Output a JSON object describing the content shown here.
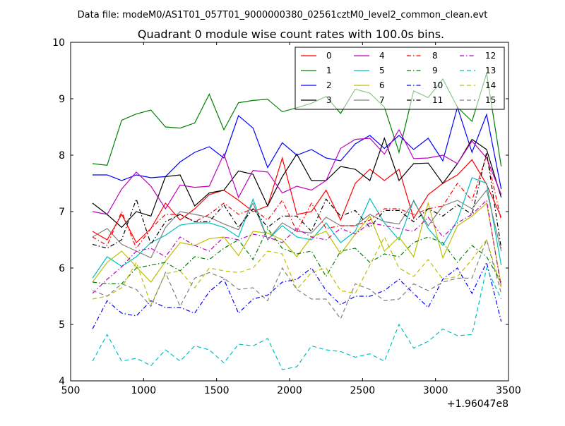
{
  "file_label": "Data file: modeM0/AS1T01_057T01_9000000380_02561cztM0_level2_common_clean.evt",
  "chart_data": {
    "type": "line",
    "title": "Quadrant 0 module wise count rates with 100.0s bins.",
    "xlabel": "",
    "ylabel": "",
    "x_offset_label": "+1.96047e8",
    "xlim": [
      500,
      3500
    ],
    "ylim": [
      4,
      10
    ],
    "xticks": [
      500,
      1000,
      1500,
      2000,
      2500,
      3000,
      3500
    ],
    "yticks": [
      4,
      5,
      6,
      7,
      8,
      9,
      10
    ],
    "grid": false,
    "legend_position": "top-right",
    "legend_columns": 4,
    "x": [
      650,
      750,
      850,
      950,
      1050,
      1150,
      1250,
      1350,
      1450,
      1550,
      1650,
      1750,
      1850,
      1950,
      2050,
      2150,
      2250,
      2350,
      2450,
      2550,
      2650,
      2750,
      2850,
      2950,
      3050,
      3150,
      3250,
      3350,
      3450
    ],
    "series": [
      {
        "name": "0",
        "color": "#ff0000",
        "dash": "solid",
        "values": [
          6.65,
          6.5,
          6.95,
          6.45,
          6.7,
          7.15,
          6.85,
          7.05,
          7.3,
          7.38,
          7.2,
          7.0,
          7.1,
          7.95,
          6.95,
          7.0,
          7.38,
          6.85,
          7.5,
          7.75,
          7.55,
          7.75,
          6.88,
          7.3,
          7.5,
          7.65,
          7.92,
          7.48,
          6.9
        ]
      },
      {
        "name": "1",
        "color": "#008000",
        "dash": "solid",
        "values": [
          7.85,
          7.82,
          8.62,
          8.73,
          8.8,
          8.5,
          8.48,
          8.57,
          9.08,
          8.45,
          8.93,
          8.97,
          8.99,
          8.77,
          8.84,
          8.92,
          9.04,
          8.74,
          9.17,
          9.1,
          8.85,
          8.05,
          9.14,
          9.02,
          9.35,
          8.85,
          8.6,
          9.45,
          7.8
        ]
      },
      {
        "name": "2",
        "color": "#0000ff",
        "dash": "solid",
        "values": [
          7.65,
          7.65,
          7.55,
          7.65,
          7.6,
          7.62,
          7.88,
          8.05,
          8.15,
          7.95,
          8.7,
          8.48,
          7.78,
          8.22,
          8.0,
          8.1,
          7.95,
          7.9,
          8.2,
          8.35,
          8.12,
          8.35,
          8.1,
          8.3,
          7.9,
          8.85,
          8.05,
          8.72,
          7.4
        ]
      },
      {
        "name": "3",
        "color": "#000000",
        "dash": "solid",
        "values": [
          7.15,
          6.95,
          6.72,
          7.0,
          6.92,
          7.62,
          7.65,
          7.1,
          7.33,
          7.38,
          7.72,
          7.66,
          7.1,
          7.62,
          8.02,
          7.55,
          7.55,
          7.8,
          7.75,
          7.55,
          8.3,
          7.55,
          7.85,
          7.86,
          7.5,
          7.85,
          8.28,
          8.1,
          7.25
        ]
      },
      {
        "name": "4",
        "color": "#bf00bf",
        "dash": "solid",
        "values": [
          7.0,
          6.95,
          7.4,
          7.7,
          7.45,
          7.05,
          7.47,
          7.43,
          7.45,
          8.02,
          7.25,
          7.73,
          7.7,
          7.33,
          7.45,
          7.38,
          7.55,
          8.12,
          8.28,
          8.3,
          8.02,
          8.45,
          7.94,
          7.95,
          8.0,
          7.85,
          8.25,
          7.95,
          7.3
        ]
      },
      {
        "name": "5",
        "color": "#00bfbf",
        "dash": "solid",
        "values": [
          5.82,
          6.2,
          6.03,
          6.2,
          6.45,
          6.58,
          6.76,
          6.8,
          6.8,
          6.72,
          6.55,
          7.22,
          6.5,
          6.75,
          6.55,
          6.5,
          6.8,
          6.45,
          6.65,
          7.23,
          6.8,
          6.5,
          7.2,
          6.7,
          6.4,
          6.85,
          7.6,
          7.5,
          6.05
        ]
      },
      {
        "name": "6",
        "color": "#bfbf00",
        "dash": "solid",
        "values": [
          5.75,
          6.1,
          6.3,
          6.02,
          5.75,
          6.12,
          6.45,
          6.4,
          6.52,
          6.55,
          6.22,
          6.65,
          6.62,
          6.5,
          6.2,
          6.55,
          6.65,
          6.25,
          6.6,
          6.92,
          6.3,
          6.55,
          6.2,
          7.15,
          6.18,
          6.75,
          6.92,
          7.15,
          5.7
        ]
      },
      {
        "name": "7",
        "color": "#808080",
        "dash": "solid",
        "values": [
          6.55,
          6.7,
          6.42,
          6.3,
          6.18,
          6.72,
          7.0,
          6.95,
          6.9,
          6.78,
          6.68,
          7.15,
          6.5,
          6.8,
          6.65,
          6.62,
          6.9,
          6.75,
          6.75,
          6.95,
          6.82,
          6.78,
          7.18,
          6.75,
          7.1,
          7.2,
          7.05,
          7.38,
          6.3
        ]
      },
      {
        "name": "8",
        "color": "#ff0000",
        "dash": "dashdot",
        "values": [
          6.55,
          6.4,
          7.0,
          6.35,
          6.7,
          6.95,
          6.95,
          6.82,
          6.95,
          7.15,
          6.95,
          7.05,
          6.85,
          7.2,
          6.65,
          7.15,
          6.7,
          6.75,
          6.75,
          6.85,
          7.05,
          7.05,
          6.95,
          7.05,
          7.1,
          7.5,
          7.2,
          8.0,
          6.85
        ]
      },
      {
        "name": "9",
        "color": "#008000",
        "dash": "dashdot",
        "values": [
          5.75,
          5.72,
          5.72,
          6.0,
          6.05,
          6.1,
          5.95,
          6.2,
          6.15,
          6.35,
          6.5,
          6.15,
          6.7,
          6.35,
          6.25,
          6.3,
          5.85,
          6.3,
          6.35,
          6.1,
          6.25,
          6.2,
          6.45,
          6.55,
          6.45,
          6.1,
          6.4,
          6.2,
          5.75
        ]
      },
      {
        "name": "10",
        "color": "#0000ff",
        "dash": "dashdot",
        "values": [
          4.92,
          5.42,
          5.2,
          5.15,
          5.42,
          5.3,
          5.3,
          5.2,
          5.58,
          5.8,
          5.2,
          5.45,
          5.52,
          5.75,
          5.8,
          6.0,
          5.6,
          5.35,
          5.5,
          5.5,
          5.6,
          5.8,
          5.55,
          5.3,
          5.8,
          6.0,
          5.55,
          6.1,
          5.05
        ]
      },
      {
        "name": "11",
        "color": "#000000",
        "dash": "dashdot",
        "values": [
          6.42,
          6.35,
          6.5,
          7.22,
          6.42,
          6.82,
          6.95,
          6.82,
          6.82,
          7.12,
          6.72,
          7.05,
          6.72,
          6.92,
          6.92,
          6.65,
          7.22,
          6.92,
          7.02,
          6.72,
          7.02,
          7.02,
          6.82,
          7.05,
          6.92,
          7.12,
          6.95,
          8.05,
          6.35
        ]
      },
      {
        "name": "12",
        "color": "#bf00bf",
        "dash": "dashdot",
        "values": [
          5.55,
          5.8,
          6.02,
          6.3,
          6.35,
          6.2,
          6.55,
          6.4,
          6.3,
          6.55,
          6.5,
          6.6,
          6.55,
          6.45,
          6.7,
          6.55,
          6.5,
          6.7,
          6.6,
          6.8,
          6.75,
          6.7,
          6.65,
          6.9,
          6.55,
          6.8,
          6.95,
          7.2,
          5.65
        ]
      },
      {
        "name": "13",
        "color": "#00bfbf",
        "dash": "dashed",
        "values": [
          4.35,
          4.82,
          4.35,
          4.4,
          4.27,
          4.55,
          4.35,
          4.62,
          4.55,
          4.32,
          4.65,
          4.62,
          4.75,
          4.2,
          4.25,
          4.62,
          4.55,
          4.52,
          4.42,
          4.48,
          4.35,
          5.0,
          4.58,
          4.7,
          4.92,
          4.8,
          4.82,
          6.0,
          5.45
        ]
      },
      {
        "name": "14",
        "color": "#bfbf00",
        "dash": "dashed",
        "values": [
          5.45,
          5.5,
          5.65,
          6.1,
          5.35,
          5.9,
          5.95,
          5.65,
          6.0,
          5.95,
          5.92,
          6.0,
          6.3,
          6.25,
          5.62,
          5.92,
          6.0,
          5.6,
          5.55,
          6.05,
          6.55,
          6.0,
          5.85,
          6.15,
          5.8,
          5.85,
          6.15,
          6.5,
          5.65
        ]
      },
      {
        "name": "15",
        "color": "#808080",
        "dash": "dashed",
        "values": [
          5.6,
          5.5,
          5.72,
          5.62,
          5.32,
          5.92,
          5.32,
          5.82,
          5.92,
          5.82,
          5.62,
          5.65,
          5.42,
          6.0,
          5.62,
          5.45,
          5.45,
          5.1,
          5.72,
          5.62,
          5.42,
          5.45,
          5.72,
          5.6,
          5.75,
          5.82,
          5.82,
          6.5,
          5.55
        ]
      }
    ]
  }
}
